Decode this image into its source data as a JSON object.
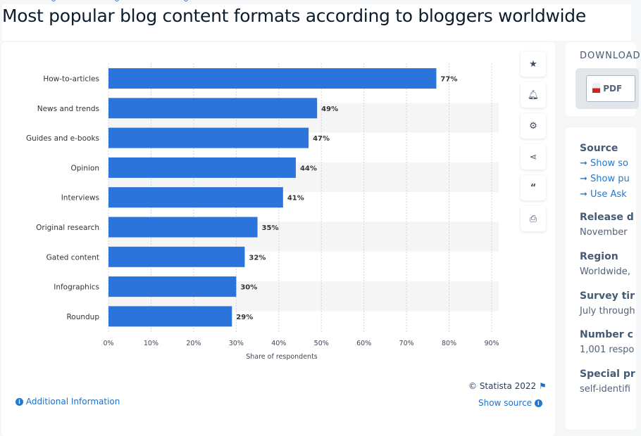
{
  "title": "Most popular blog content formats according to bloggers worldwide",
  "toolbar": [
    "star-icon",
    "bell-icon",
    "gear-icon",
    "share-icon",
    "quote-icon",
    "print-icon"
  ],
  "download": {
    "heading": "DOWNLOAD",
    "pdf_label": "PDF"
  },
  "details": {
    "source_heading": "Source",
    "source_links": [
      "Show so",
      "Show pu",
      "Use Ask"
    ],
    "release_heading": "Release d",
    "release_value": "November",
    "region_heading": "Region",
    "region_value": "Worldwide,",
    "survey_heading": "Survey tir",
    "survey_value": "July through",
    "number_heading": "Number c",
    "number_value": "1,001 respo",
    "special_heading": "Special pr",
    "special_value": "self-identifi"
  },
  "footer": {
    "additional_info": "Additional Information",
    "copyright": "© Statista 2022",
    "show_source": "Show source"
  },
  "colors": {
    "bar": "#2a74db",
    "link": "#1f79d1"
  },
  "chart_data": {
    "type": "bar",
    "orientation": "horizontal",
    "categories": [
      "How-to-articles",
      "News and trends",
      "Guides and e-books",
      "Opinion",
      "Interviews",
      "Original research",
      "Gated content",
      "Infographics",
      "Roundup"
    ],
    "values": [
      77,
      49,
      47,
      44,
      41,
      35,
      32,
      30,
      29
    ],
    "data_labels": [
      "77%",
      "49%",
      "47%",
      "44%",
      "41%",
      "35%",
      "32%",
      "30%",
      "29%"
    ],
    "xlabel": "Share of respondents",
    "xlim": [
      0,
      90
    ],
    "xticks": [
      "0%",
      "10%",
      "20%",
      "30%",
      "40%",
      "50%",
      "60%",
      "70%",
      "80%",
      "90%"
    ],
    "grid": true
  }
}
